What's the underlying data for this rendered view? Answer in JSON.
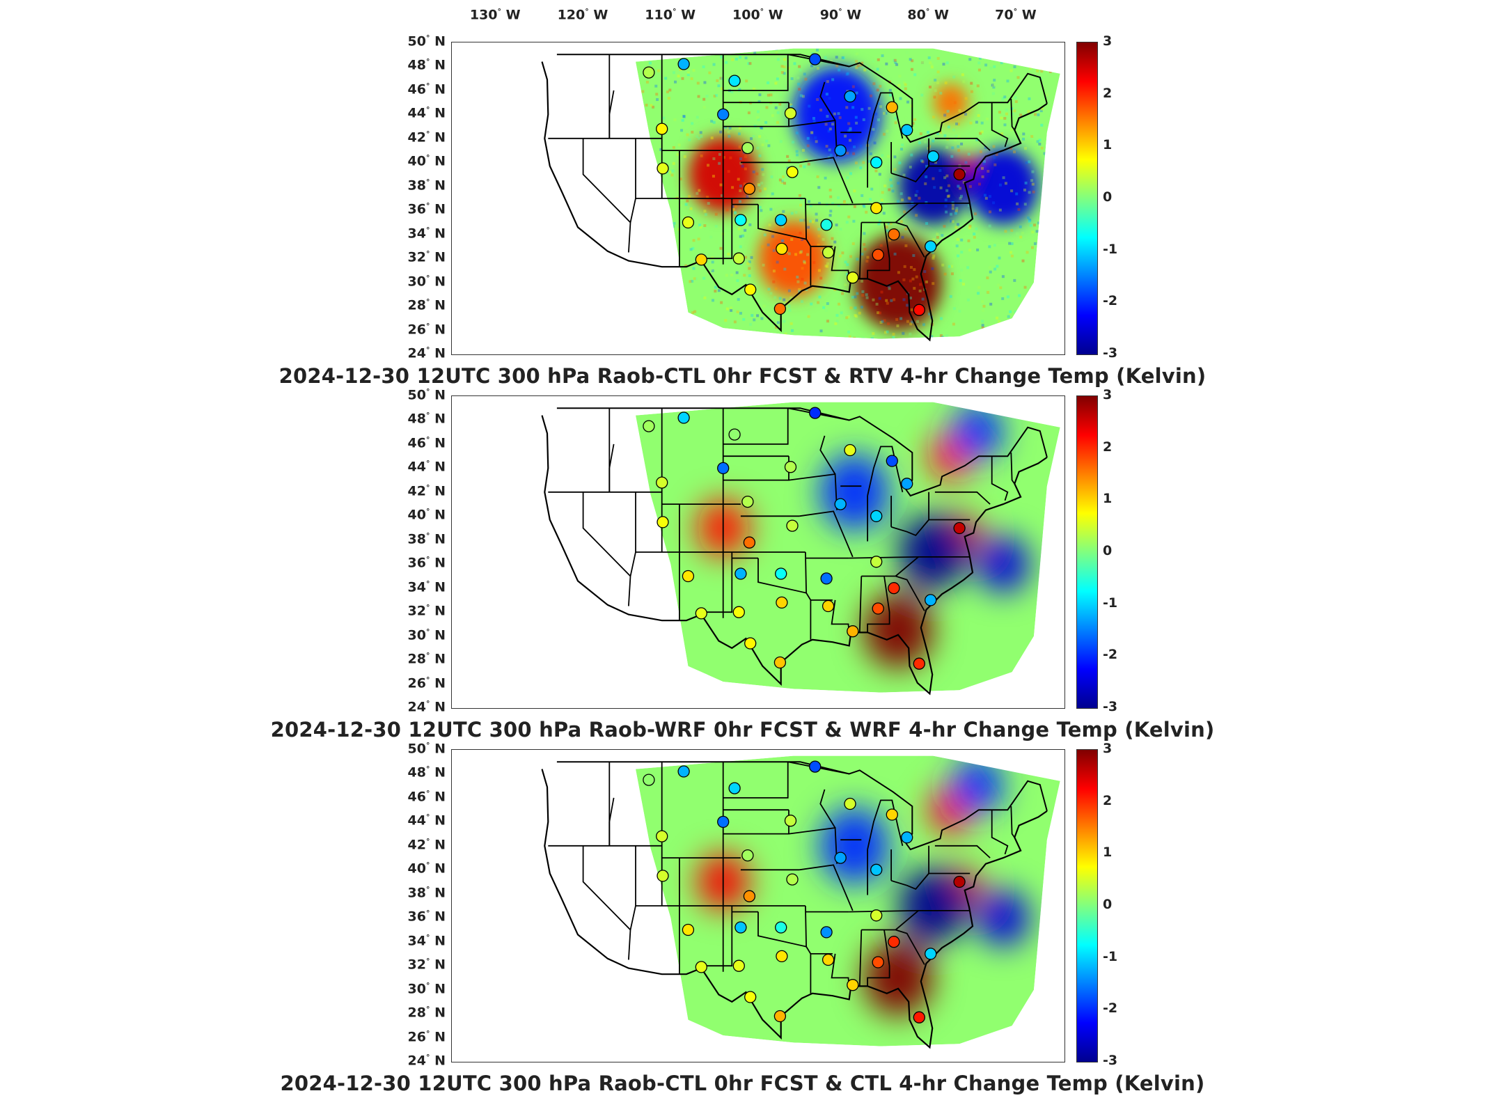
{
  "colors": {
    "colormap": [
      "#00008f",
      "#0000ff",
      "#0080ff",
      "#00ffff",
      "#80ff80",
      "#ffff00",
      "#ff8000",
      "#ff0000",
      "#800000"
    ],
    "coast_lines": "#000000"
  },
  "lon_labels": [
    "130",
    "120",
    "110",
    "100",
    "90",
    "80",
    "70"
  ],
  "lon_suffix": "W",
  "lat_labels": [
    "50",
    "48",
    "46",
    "44",
    "42",
    "40",
    "38",
    "36",
    "34",
    "32",
    "30",
    "28",
    "26",
    "24"
  ],
  "lat_suffix": "N",
  "colorbar_ticks": [
    "3",
    "2",
    "1",
    "0",
    "-1",
    "-2",
    "-3"
  ],
  "panels": [
    {
      "title": "2024-12-30 12UTC 300 hPa Raob-CTL 0hr FCST & RTV 4-hr Change Temp (Kelvin)"
    },
    {
      "title": "2024-12-30 12UTC 300 hPa Raob-WRF 0hr FCST & WRF 4-hr Change Temp (Kelvin)"
    },
    {
      "title": "2024-12-30 12UTC 300 hPa Raob-CTL 0hr FCST & CTL 4-hr Change Temp (Kelvin)"
    }
  ],
  "chart_data": [
    {
      "type": "heatmap",
      "title": "2024-12-30 12UTC 300 hPa Raob-CTL 0hr FCST & RTV 4-hr Change Temp (Kelvin)",
      "xlabel": "",
      "ylabel": "",
      "xlim": [
        -135,
        -65
      ],
      "ylim": [
        24,
        50
      ],
      "colorbar": {
        "range": [
          -3,
          3
        ],
        "ticks": [
          3,
          2,
          1,
          0,
          -1,
          -2,
          -3
        ]
      },
      "field_features": [
        {
          "lon": -84,
          "lat": 30,
          "value": 3,
          "extent_deg": 5
        },
        {
          "lon": -104,
          "lat": 39,
          "value": 2.5,
          "extent_deg": 4
        },
        {
          "lon": -76,
          "lat": 39,
          "value": 2.5,
          "extent_deg": 2
        },
        {
          "lon": -80,
          "lat": 38,
          "value": -2.8,
          "extent_deg": 4
        },
        {
          "lon": -91,
          "lat": 44,
          "value": -2.2,
          "extent_deg": 5
        },
        {
          "lon": -72,
          "lat": 38,
          "value": -2.5,
          "extent_deg": 4
        },
        {
          "lon": -78,
          "lat": 45,
          "value": 1.6,
          "extent_deg": 2
        },
        {
          "lon": -96,
          "lat": 32,
          "value": 1.8,
          "extent_deg": 4
        }
      ],
      "stations": [
        {
          "lon": -112.5,
          "lat": 47.5,
          "value": 0.3
        },
        {
          "lon": -108.5,
          "lat": 48.2,
          "value": -1.2
        },
        {
          "lon": -102.7,
          "lat": 46.8,
          "value": -0.9
        },
        {
          "lon": -93.5,
          "lat": 48.6,
          "value": -1.8
        },
        {
          "lon": -111.0,
          "lat": 42.8,
          "value": 0.8
        },
        {
          "lon": -104.0,
          "lat": 44.0,
          "value": -1.5
        },
        {
          "lon": -101.2,
          "lat": 41.2,
          "value": 0.2
        },
        {
          "lon": -96.3,
          "lat": 44.1,
          "value": 0.5
        },
        {
          "lon": -89.5,
          "lat": 45.5,
          "value": -1.3
        },
        {
          "lon": -84.7,
          "lat": 44.6,
          "value": 1.2
        },
        {
          "lon": -110.9,
          "lat": 39.5,
          "value": 0.6
        },
        {
          "lon": -101.0,
          "lat": 37.8,
          "value": 1.4
        },
        {
          "lon": -96.1,
          "lat": 39.2,
          "value": 0.7
        },
        {
          "lon": -90.6,
          "lat": 41.0,
          "value": -1.4
        },
        {
          "lon": -86.5,
          "lat": 40.0,
          "value": -0.8
        },
        {
          "lon": -83.0,
          "lat": 42.7,
          "value": -1.1
        },
        {
          "lon": -80.0,
          "lat": 40.5,
          "value": -1.0
        },
        {
          "lon": -77.0,
          "lat": 39.0,
          "value": 2.8
        },
        {
          "lon": -108.0,
          "lat": 35.0,
          "value": 0.6
        },
        {
          "lon": -102.0,
          "lat": 35.2,
          "value": -0.7
        },
        {
          "lon": -97.4,
          "lat": 35.2,
          "value": -1.0
        },
        {
          "lon": -92.2,
          "lat": 34.8,
          "value": -0.6
        },
        {
          "lon": -86.5,
          "lat": 36.2,
          "value": 0.9
        },
        {
          "lon": -84.5,
          "lat": 34.0,
          "value": 1.6
        },
        {
          "lon": -80.3,
          "lat": 33.0,
          "value": -1.0
        },
        {
          "lon": -106.5,
          "lat": 31.9,
          "value": 1.0
        },
        {
          "lon": -102.2,
          "lat": 32.0,
          "value": 0.4
        },
        {
          "lon": -97.3,
          "lat": 32.8,
          "value": 0.9
        },
        {
          "lon": -92.0,
          "lat": 32.5,
          "value": 0.4
        },
        {
          "lon": -86.3,
          "lat": 32.3,
          "value": 1.8
        },
        {
          "lon": -89.2,
          "lat": 30.4,
          "value": 0.6
        },
        {
          "lon": -100.9,
          "lat": 29.4,
          "value": 0.8
        },
        {
          "lon": -97.5,
          "lat": 27.8,
          "value": 1.6
        },
        {
          "lon": -81.6,
          "lat": 27.7,
          "value": 2.2
        }
      ]
    },
    {
      "type": "heatmap",
      "title": "2024-12-30 12UTC 300 hPa Raob-WRF 0hr FCST & WRF 4-hr Change Temp (Kelvin)",
      "xlabel": "",
      "ylabel": "",
      "xlim": [
        -135,
        -65
      ],
      "ylim": [
        24,
        50
      ],
      "colorbar": {
        "range": [
          -3,
          3
        ],
        "ticks": [
          3,
          2,
          1,
          0,
          -1,
          -2,
          -3
        ]
      },
      "field_features": [
        {
          "lon": -84,
          "lat": 30.5,
          "value": 3,
          "extent_deg": 4
        },
        {
          "lon": -104,
          "lat": 39,
          "value": 2.2,
          "extent_deg": 3
        },
        {
          "lon": -78,
          "lat": 45,
          "value": 2.2,
          "extent_deg": 2.5
        },
        {
          "lon": -76.5,
          "lat": 38.5,
          "value": 2.5,
          "extent_deg": 2
        },
        {
          "lon": -80,
          "lat": 37,
          "value": -3,
          "extent_deg": 4
        },
        {
          "lon": -89,
          "lat": 42,
          "value": -2.0,
          "extent_deg": 4
        },
        {
          "lon": -72,
          "lat": 36,
          "value": -2.5,
          "extent_deg": 3
        },
        {
          "lon": -75,
          "lat": 47,
          "value": -2.0,
          "extent_deg": 3
        }
      ],
      "stations": [
        {
          "lon": -112.5,
          "lat": 47.5,
          "value": 0.2
        },
        {
          "lon": -108.5,
          "lat": 48.2,
          "value": -1.0
        },
        {
          "lon": -102.7,
          "lat": 46.8,
          "value": 0.1
        },
        {
          "lon": -93.5,
          "lat": 48.6,
          "value": -2.0
        },
        {
          "lon": -111.0,
          "lat": 42.8,
          "value": 0.5
        },
        {
          "lon": -104.0,
          "lat": 44.0,
          "value": -1.6
        },
        {
          "lon": -101.2,
          "lat": 41.2,
          "value": 0.3
        },
        {
          "lon": -96.3,
          "lat": 44.1,
          "value": 0.3
        },
        {
          "lon": -89.5,
          "lat": 45.5,
          "value": 0.6
        },
        {
          "lon": -84.7,
          "lat": 44.6,
          "value": -1.8
        },
        {
          "lon": -110.9,
          "lat": 39.5,
          "value": 0.7
        },
        {
          "lon": -101.0,
          "lat": 37.8,
          "value": 1.6
        },
        {
          "lon": -96.1,
          "lat": 39.2,
          "value": 0.4
        },
        {
          "lon": -90.6,
          "lat": 41.0,
          "value": -1.2
        },
        {
          "lon": -86.5,
          "lat": 40.0,
          "value": -1.0
        },
        {
          "lon": -83.0,
          "lat": 42.7,
          "value": -1.3
        },
        {
          "lon": -77.0,
          "lat": 39.0,
          "value": 2.6
        },
        {
          "lon": -108.0,
          "lat": 35.0,
          "value": 0.9
        },
        {
          "lon": -102.0,
          "lat": 35.2,
          "value": -1.2
        },
        {
          "lon": -97.4,
          "lat": 35.2,
          "value": -0.7
        },
        {
          "lon": -92.2,
          "lat": 34.8,
          "value": -1.6
        },
        {
          "lon": -86.5,
          "lat": 36.2,
          "value": 0.4
        },
        {
          "lon": -84.5,
          "lat": 34.0,
          "value": 2.0
        },
        {
          "lon": -80.3,
          "lat": 33.0,
          "value": -1.2
        },
        {
          "lon": -106.5,
          "lat": 31.9,
          "value": 0.6
        },
        {
          "lon": -102.2,
          "lat": 32.0,
          "value": 0.7
        },
        {
          "lon": -97.3,
          "lat": 32.8,
          "value": 1.0
        },
        {
          "lon": -92.0,
          "lat": 32.5,
          "value": 1.0
        },
        {
          "lon": -86.3,
          "lat": 32.3,
          "value": 1.8
        },
        {
          "lon": -89.2,
          "lat": 30.4,
          "value": 1.2
        },
        {
          "lon": -100.9,
          "lat": 29.4,
          "value": 0.8
        },
        {
          "lon": -97.5,
          "lat": 27.8,
          "value": 1.1
        },
        {
          "lon": -81.6,
          "lat": 27.7,
          "value": 2.0
        }
      ]
    },
    {
      "type": "heatmap",
      "title": "2024-12-30 12UTC 300 hPa Raob-CTL 0hr FCST & CTL 4-hr Change Temp (Kelvin)",
      "xlabel": "",
      "ylabel": "",
      "xlim": [
        -135,
        -65
      ],
      "ylim": [
        24,
        50
      ],
      "colorbar": {
        "range": [
          -3,
          3
        ],
        "ticks": [
          3,
          2,
          1,
          0,
          -1,
          -2,
          -3
        ]
      },
      "field_features": [
        {
          "lon": -84,
          "lat": 31,
          "value": 3,
          "extent_deg": 4
        },
        {
          "lon": -104,
          "lat": 39,
          "value": 2.3,
          "extent_deg": 3
        },
        {
          "lon": -78,
          "lat": 45,
          "value": 2.3,
          "extent_deg": 2.5
        },
        {
          "lon": -76.5,
          "lat": 38.5,
          "value": 2.5,
          "extent_deg": 2
        },
        {
          "lon": -80,
          "lat": 37,
          "value": -3,
          "extent_deg": 4
        },
        {
          "lon": -89,
          "lat": 42,
          "value": -2.0,
          "extent_deg": 4
        },
        {
          "lon": -72,
          "lat": 36,
          "value": -2.5,
          "extent_deg": 3
        },
        {
          "lon": -75,
          "lat": 47,
          "value": -2.0,
          "extent_deg": 3
        }
      ],
      "stations": [
        {
          "lon": -112.5,
          "lat": 47.5,
          "value": 0.1
        },
        {
          "lon": -108.5,
          "lat": 48.2,
          "value": -1.2
        },
        {
          "lon": -102.7,
          "lat": 46.8,
          "value": -1.0
        },
        {
          "lon": -93.5,
          "lat": 48.6,
          "value": -1.8
        },
        {
          "lon": -111.0,
          "lat": 42.8,
          "value": 0.5
        },
        {
          "lon": -104.0,
          "lat": 44.0,
          "value": -1.6
        },
        {
          "lon": -101.2,
          "lat": 41.2,
          "value": 0.2
        },
        {
          "lon": -96.3,
          "lat": 44.1,
          "value": 0.4
        },
        {
          "lon": -89.5,
          "lat": 45.5,
          "value": 0.5
        },
        {
          "lon": -84.7,
          "lat": 44.6,
          "value": 1.0
        },
        {
          "lon": -110.9,
          "lat": 39.5,
          "value": 0.5
        },
        {
          "lon": -101.0,
          "lat": 37.8,
          "value": 1.4
        },
        {
          "lon": -96.1,
          "lat": 39.2,
          "value": 0.3
        },
        {
          "lon": -90.6,
          "lat": 41.0,
          "value": -1.3
        },
        {
          "lon": -86.5,
          "lat": 40.0,
          "value": -1.1
        },
        {
          "lon": -83.0,
          "lat": 42.7,
          "value": -1.2
        },
        {
          "lon": -77.0,
          "lat": 39.0,
          "value": 2.7
        },
        {
          "lon": -108.0,
          "lat": 35.0,
          "value": 0.9
        },
        {
          "lon": -102.0,
          "lat": 35.2,
          "value": -1.1
        },
        {
          "lon": -97.4,
          "lat": 35.2,
          "value": -0.6
        },
        {
          "lon": -92.2,
          "lat": 34.8,
          "value": -1.4
        },
        {
          "lon": -86.5,
          "lat": 36.2,
          "value": 0.5
        },
        {
          "lon": -84.5,
          "lat": 34.0,
          "value": 2.0
        },
        {
          "lon": -80.3,
          "lat": 33.0,
          "value": -1.0
        },
        {
          "lon": -106.5,
          "lat": 31.9,
          "value": 0.6
        },
        {
          "lon": -102.2,
          "lat": 32.0,
          "value": 0.6
        },
        {
          "lon": -97.3,
          "lat": 32.8,
          "value": 0.9
        },
        {
          "lon": -92.0,
          "lat": 32.5,
          "value": 1.0
        },
        {
          "lon": -86.3,
          "lat": 32.3,
          "value": 1.8
        },
        {
          "lon": -89.2,
          "lat": 30.4,
          "value": 1.0
        },
        {
          "lon": -100.9,
          "lat": 29.4,
          "value": 0.7
        },
        {
          "lon": -97.5,
          "lat": 27.8,
          "value": 1.2
        },
        {
          "lon": -81.6,
          "lat": 27.7,
          "value": 2.1
        }
      ]
    }
  ]
}
